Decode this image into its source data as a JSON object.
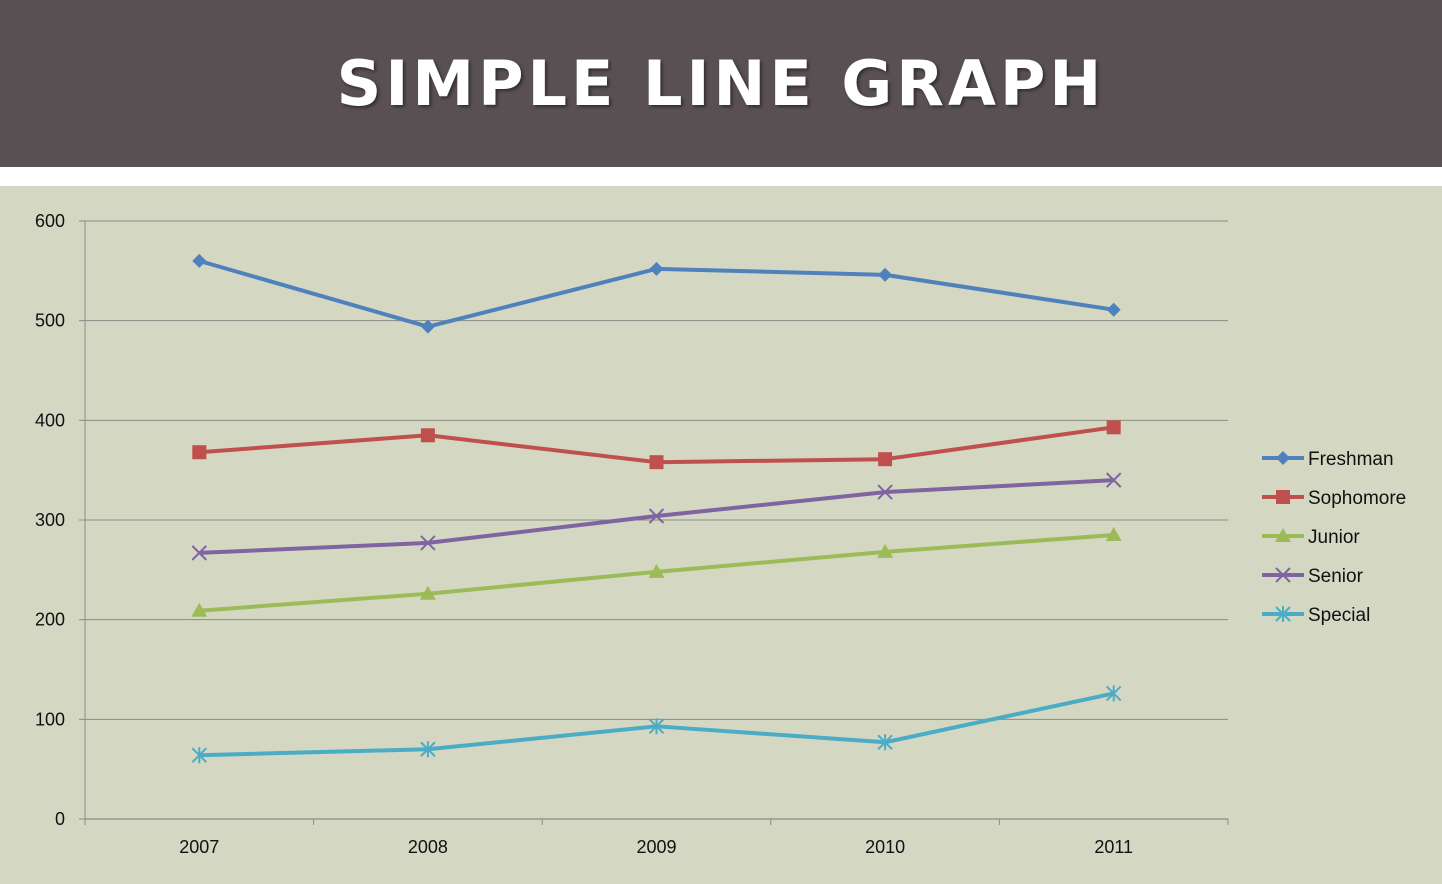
{
  "header": {
    "title": "SIMPLE LINE GRAPH"
  },
  "colors": {
    "header_bg": "#595054",
    "plot_bg": "#d4d8c3"
  },
  "chart_data": {
    "type": "line",
    "title": "",
    "xlabel": "",
    "ylabel": "",
    "categories": [
      "2007",
      "2008",
      "2009",
      "2010",
      "2011"
    ],
    "ylim": [
      0,
      600
    ],
    "yticks": [
      0,
      100,
      200,
      300,
      400,
      500,
      600
    ],
    "grid": true,
    "legend_position": "right",
    "series": [
      {
        "name": "Freshman",
        "values": [
          560,
          494,
          552,
          546,
          511
        ],
        "color": "#4f81bd",
        "marker": "diamond"
      },
      {
        "name": "Sophomore",
        "values": [
          368,
          385,
          358,
          361,
          393
        ],
        "color": "#c0504d",
        "marker": "square"
      },
      {
        "name": "Junior",
        "values": [
          209,
          226,
          248,
          268,
          285
        ],
        "color": "#9bbb59",
        "marker": "triangle"
      },
      {
        "name": "Senior",
        "values": [
          267,
          277,
          304,
          328,
          340
        ],
        "color": "#8064a2",
        "marker": "x"
      },
      {
        "name": "Special",
        "values": [
          64,
          70,
          93,
          77,
          126
        ],
        "color": "#4bacc6",
        "marker": "star"
      }
    ]
  }
}
